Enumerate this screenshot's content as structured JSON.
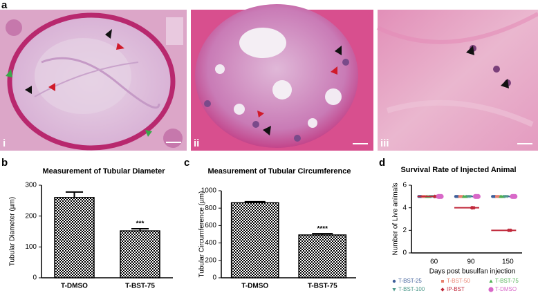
{
  "panel_labels": [
    "a",
    "i",
    "ii",
    "iii",
    "b",
    "c",
    "d"
  ],
  "chart_data": [
    {
      "type": "bar",
      "title": "Measurement of Tubular Diameter",
      "ylabel": "Tubular Diameter (µm)",
      "categories": [
        "T-DMSO",
        "T-BST-75"
      ],
      "values": [
        260,
        152
      ],
      "errors": [
        18,
        7
      ],
      "value_labels": [
        null,
        "***"
      ],
      "color": "#000000",
      "ylim": [
        0,
        300
      ],
      "yticks": [
        0,
        100,
        200,
        300
      ]
    },
    {
      "type": "bar",
      "title": "Measurement of Tubular Circumference",
      "ylabel": "Tubular Circumference (µm)",
      "categories": [
        "T-DMSO",
        "T-BST-75"
      ],
      "values": [
        862,
        492
      ],
      "errors": [
        12,
        15
      ],
      "value_labels": [
        null,
        "****"
      ],
      "color": "#000000",
      "ylim": [
        0,
        1000
      ],
      "yticks": [
        0,
        200,
        400,
        600,
        800,
        1000
      ]
    },
    {
      "type": "scatter",
      "title": "Survival Rate of Injected Animal",
      "ylabel": "Number of Live animals",
      "xlabel": "Days post busulfan injection",
      "categories": [
        "60",
        "90",
        "150"
      ],
      "ylim": [
        0,
        6
      ],
      "yticks": [
        0,
        2,
        4,
        6
      ],
      "legend": "bottom",
      "series": [
        {
          "name": "T-BST-25",
          "color": "#3f5f9a",
          "marker": "circle",
          "values": [
            5,
            5,
            5
          ]
        },
        {
          "name": "T-BST-50",
          "color": "#e8806e",
          "marker": "square",
          "values": [
            5,
            5,
            5
          ]
        },
        {
          "name": "T-BST-75",
          "color": "#4caf50",
          "marker": "triangle-up",
          "values": [
            5,
            5,
            5
          ]
        },
        {
          "name": "T-BST-100",
          "color": "#4f9a8c",
          "marker": "triangle-down",
          "values": [
            5,
            5,
            5
          ]
        },
        {
          "name": "IP-BST",
          "color": "#c0283a",
          "marker": "diamond",
          "values": [
            5,
            4,
            2
          ]
        },
        {
          "name": "T-DMSO",
          "color": "#d868c8",
          "marker": "big-circle",
          "values": [
            5,
            5,
            5
          ]
        }
      ]
    }
  ]
}
